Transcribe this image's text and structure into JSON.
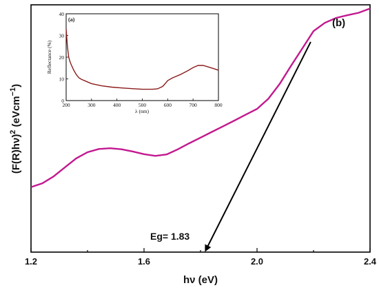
{
  "chart_data": [
    {
      "type": "line",
      "panel_label": "(b)",
      "xlabel": "hν (eV)",
      "ylabel": {
        "base": "(F(R)hν)",
        "exp": "2",
        "unit_base": " (eVcm",
        "unit_exp": "−1",
        "unit_close": ")"
      },
      "xlim": [
        1.2,
        2.4
      ],
      "ylim": [
        0,
        1
      ],
      "x_ticks": [
        1.2,
        1.6,
        2.0,
        2.4
      ],
      "x_tick_labels": [
        "1.2",
        "1.6",
        "2.0",
        "2.4"
      ],
      "y_tick_labels": [],
      "color": "#c2188f",
      "series": [
        {
          "x": [
            1.2,
            1.24,
            1.28,
            1.32,
            1.36,
            1.4,
            1.44,
            1.48,
            1.52,
            1.56,
            1.6,
            1.64,
            1.68,
            1.72,
            1.76,
            1.8,
            1.84,
            1.88,
            1.92,
            1.96,
            2.0,
            2.04,
            2.08,
            2.12,
            2.16,
            2.2,
            2.24,
            2.28,
            2.32,
            2.36,
            2.4
          ],
          "y": [
            0.263,
            0.278,
            0.306,
            0.343,
            0.379,
            0.404,
            0.417,
            0.42,
            0.416,
            0.407,
            0.396,
            0.389,
            0.395,
            0.416,
            0.44,
            0.463,
            0.486,
            0.509,
            0.532,
            0.556,
            0.579,
            0.62,
            0.68,
            0.753,
            0.823,
            0.894,
            0.927,
            0.947,
            0.958,
            0.968,
            0.985
          ]
        }
      ],
      "fit_line": {
        "x": [
          2.19,
          1.82
        ],
        "y": [
          0.85,
          0.0
        ],
        "color": "#000000"
      },
      "annotation": {
        "text": "Eg= 1.83",
        "x": 1.83
      }
    },
    {
      "type": "line",
      "panel_label": "(a)",
      "xlabel": "λ (nm)",
      "ylabel": "Reflectance (%)",
      "xlim": [
        200,
        800
      ],
      "ylim": [
        0,
        40
      ],
      "x_ticks": [
        200,
        300,
        400,
        500,
        600,
        700,
        800
      ],
      "y_ticks": [
        0,
        10,
        20,
        30,
        40
      ],
      "color": "#8b1a1a",
      "series": [
        {
          "x": [
            200,
            205,
            210,
            215,
            220,
            230,
            240,
            250,
            260,
            280,
            300,
            340,
            380,
            420,
            460,
            500,
            540,
            560,
            580,
            590,
            600,
            620,
            650,
            680,
            700,
            720,
            740,
            760,
            780,
            800
          ],
          "y": [
            33,
            25,
            20,
            18,
            16.5,
            14,
            12,
            10.5,
            9.8,
            8.8,
            7.8,
            6.8,
            6.2,
            5.8,
            5.5,
            5.2,
            5.2,
            5.4,
            6.5,
            7.8,
            9.2,
            10.5,
            12,
            13.8,
            15.2,
            16.2,
            16.2,
            15.5,
            14.8,
            14
          ]
        }
      ]
    }
  ]
}
